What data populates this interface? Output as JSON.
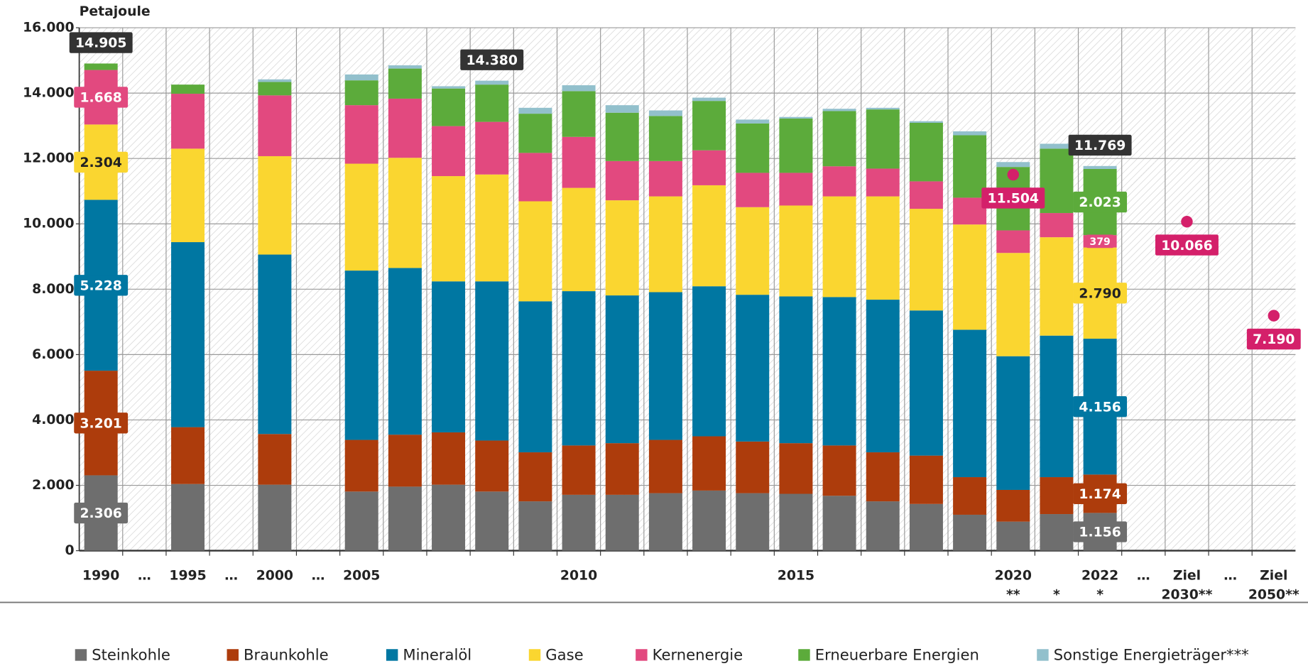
{
  "chart_data": {
    "type": "stacked_bar",
    "y_label": "Petajoule",
    "categories": [
      [
        "1990"
      ],
      [
        "…"
      ],
      [
        "1995"
      ],
      [
        "…"
      ],
      [
        "2000"
      ],
      [
        "…"
      ],
      [
        "2005"
      ],
      null,
      null,
      null,
      null,
      [
        "2010"
      ],
      null,
      null,
      null,
      null,
      [
        "2015"
      ],
      null,
      null,
      null,
      null,
      [
        "2020",
        "**"
      ],
      [
        null,
        "*"
      ],
      [
        "2022",
        "*"
      ],
      [
        "…"
      ],
      [
        "Ziel",
        "2030**"
      ],
      [
        "…"
      ],
      [
        "Ziel",
        "2050**"
      ]
    ],
    "series": [
      {
        "name": "Steinkohle",
        "color": "#6e6e6e",
        "values": [
          2306,
          null,
          2040,
          null,
          2020,
          null,
          1810,
          1960,
          2020,
          1810,
          1510,
          1710,
          1710,
          1760,
          1840,
          1760,
          1740,
          1680,
          1510,
          1430,
          1100,
          890,
          1120,
          1156,
          null,
          null,
          null,
          null
        ],
        "value_labels": [
          "2.306",
          null,
          null,
          null,
          null,
          null,
          null,
          null,
          null,
          null,
          null,
          null,
          null,
          null,
          null,
          null,
          null,
          null,
          null,
          null,
          null,
          null,
          null,
          "1.156",
          null,
          null,
          null,
          null
        ]
      },
      {
        "name": "Braunkohle",
        "color": "#ad3c0c",
        "values": [
          3201,
          null,
          1740,
          null,
          1550,
          null,
          1580,
          1590,
          1600,
          1560,
          1500,
          1510,
          1580,
          1630,
          1660,
          1580,
          1550,
          1540,
          1500,
          1480,
          1150,
          970,
          1130,
          1174,
          null,
          null,
          null,
          null
        ],
        "value_labels": [
          "3.201",
          null,
          null,
          null,
          null,
          null,
          null,
          null,
          null,
          null,
          null,
          null,
          null,
          null,
          null,
          null,
          null,
          null,
          null,
          null,
          null,
          null,
          null,
          "1.174",
          null,
          null,
          null,
          null
        ]
      },
      {
        "name": "Mineralöl",
        "color": "#0077a2",
        "values": [
          5228,
          null,
          5660,
          null,
          5490,
          null,
          5180,
          5100,
          4620,
          4870,
          4620,
          4720,
          4520,
          4520,
          4590,
          4490,
          4490,
          4540,
          4670,
          4440,
          4510,
          4090,
          4330,
          4156,
          null,
          null,
          null,
          null
        ],
        "value_labels": [
          "5.228",
          null,
          null,
          null,
          null,
          null,
          null,
          null,
          null,
          null,
          null,
          null,
          null,
          null,
          null,
          null,
          null,
          null,
          null,
          null,
          null,
          null,
          null,
          "4.156",
          null,
          null,
          null,
          null
        ]
      },
      {
        "name": "Gase",
        "color": "#fad630",
        "values": [
          2304,
          null,
          2860,
          null,
          3010,
          null,
          3270,
          3370,
          3220,
          3270,
          3060,
          3160,
          2910,
          2930,
          3090,
          2680,
          2780,
          3080,
          3160,
          3110,
          3220,
          3160,
          3010,
          2790,
          null,
          null,
          null,
          null
        ],
        "value_labels": [
          "2.304",
          null,
          null,
          null,
          null,
          null,
          null,
          null,
          null,
          null,
          null,
          null,
          null,
          null,
          null,
          null,
          null,
          null,
          null,
          null,
          null,
          null,
          null,
          "2.790",
          null,
          null,
          null,
          null
        ]
      },
      {
        "name": "Kernenergie",
        "color": "#e2497f",
        "values": [
          1668,
          null,
          1680,
          null,
          1860,
          null,
          1790,
          1810,
          1530,
          1610,
          1480,
          1560,
          1200,
          1080,
          1070,
          1050,
          1000,
          920,
          850,
          840,
          820,
          690,
          740,
          379,
          null,
          null,
          null,
          null
        ],
        "value_labels": [
          "1.668",
          null,
          null,
          null,
          null,
          null,
          null,
          null,
          null,
          null,
          null,
          null,
          null,
          null,
          null,
          null,
          null,
          null,
          null,
          null,
          null,
          null,
          null,
          "379",
          null,
          null,
          null,
          null
        ]
      },
      {
        "name": "Erneuerbare Energien",
        "color": "#5cab3b",
        "values": [
          198,
          null,
          280,
          null,
          410,
          null,
          760,
          920,
          1150,
          1140,
          1200,
          1400,
          1480,
          1380,
          1510,
          1510,
          1660,
          1690,
          1810,
          1790,
          1910,
          1940,
          1970,
          2023,
          null,
          null,
          null,
          null
        ],
        "value_labels": [
          null,
          null,
          null,
          null,
          null,
          null,
          null,
          null,
          null,
          null,
          null,
          null,
          null,
          null,
          null,
          null,
          null,
          null,
          null,
          null,
          null,
          null,
          null,
          "2.023",
          null,
          null,
          null,
          null
        ]
      },
      {
        "name": "Sonstige Energieträger***",
        "color": "#92c0cc",
        "values": [
          null,
          null,
          null,
          null,
          80,
          null,
          180,
          100,
          70,
          120,
          180,
          180,
          230,
          170,
          100,
          120,
          50,
          70,
          50,
          50,
          120,
          150,
          150,
          91,
          null,
          null,
          null,
          null
        ]
      }
    ],
    "totals": {
      "color": "#333333",
      "values": [
        14905,
        null,
        null,
        null,
        null,
        null,
        null,
        null,
        null,
        14380,
        null,
        null,
        null,
        null,
        null,
        null,
        null,
        null,
        null,
        null,
        null,
        null,
        null,
        11769,
        null,
        null,
        null,
        null
      ],
      "value_labels": [
        "14.905",
        null,
        null,
        null,
        null,
        null,
        null,
        null,
        null,
        "14.380",
        null,
        null,
        null,
        null,
        null,
        null,
        null,
        null,
        null,
        null,
        null,
        null,
        null,
        "11.769",
        null,
        null,
        null,
        null
      ]
    },
    "targets": {
      "color": "#d4206a",
      "values": [
        null,
        null,
        null,
        null,
        null,
        null,
        null,
        null,
        null,
        null,
        null,
        null,
        null,
        null,
        null,
        null,
        null,
        null,
        null,
        null,
        null,
        11504,
        null,
        null,
        null,
        10066,
        null,
        7190
      ],
      "value_labels": [
        null,
        null,
        null,
        null,
        null,
        null,
        null,
        null,
        null,
        null,
        null,
        null,
        null,
        null,
        null,
        null,
        null,
        null,
        null,
        null,
        null,
        "11.504",
        null,
        null,
        null,
        "10.066",
        null,
        "7.190"
      ]
    },
    "ylim": [
      0,
      16000
    ],
    "yticks": [
      0,
      {
        "value": 2000,
        "label": "2.000"
      },
      {
        "value": 4000,
        "label": "4.000"
      },
      {
        "value": 6000,
        "label": "6.000"
      },
      {
        "value": 8000,
        "label": "8.000"
      },
      {
        "value": 10000,
        "label": "10.000"
      },
      {
        "value": 12000,
        "label": "12.000"
      },
      {
        "value": 14000,
        "label": "14.000"
      },
      {
        "value": 16000,
        "label": "16.000"
      }
    ],
    "grid": true,
    "legend": "bottom"
  }
}
